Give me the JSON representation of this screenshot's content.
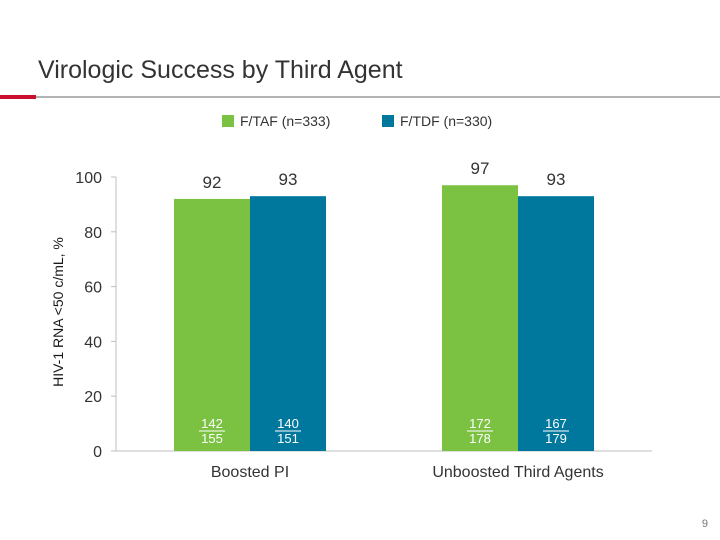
{
  "title": "Virologic Success by Third Agent",
  "page_number": "9",
  "colors": {
    "accent": "#c8102e",
    "series_a": "#7cc242",
    "series_b": "#00789e"
  },
  "chart_data": {
    "type": "bar",
    "ylabel": "HIV-1 RNA <50 c/mL, %",
    "xlabel": "",
    "ylim": [
      0,
      100
    ],
    "yticks": [
      0,
      20,
      40,
      60,
      80,
      100
    ],
    "legend_position": "top",
    "categories": [
      "Boosted PI",
      "Unboosted Third Agents"
    ],
    "series": [
      {
        "name": "F/TAF (n=333)",
        "color": "#7cc242",
        "values": [
          92,
          97
        ],
        "counts": [
          "142\n155",
          "172\n178"
        ]
      },
      {
        "name": "F/TDF (n=330)",
        "color": "#00789e",
        "values": [
          93,
          93
        ],
        "counts": [
          "140\n151",
          "167\n179"
        ]
      }
    ]
  }
}
